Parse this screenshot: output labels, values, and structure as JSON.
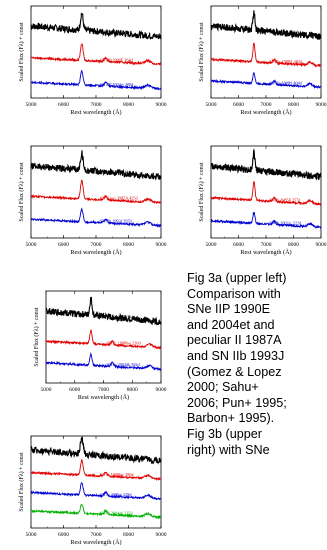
{
  "charts": [
    {
      "ylabel": "Scaled Flux (Fλ) + const",
      "xlabel": "Rest wavelength (Å)"
    }
  ],
  "chart_data": [
    {
      "type": "line",
      "xlabel": "Rest wavelength (Å)",
      "ylabel": "Scaled Flux (Fλ) + const",
      "xlim": [
        5000,
        9000
      ],
      "xticks": [
        5000,
        6000,
        7000,
        8000,
        9000
      ],
      "series": [
        {
          "name": "SN 2006gy 394d",
          "color": "#000000",
          "offset": 2.0,
          "peak": 0.55
        },
        {
          "name": "SN IIP 1990E 364d",
          "color": "#e00000",
          "offset": 1.1,
          "peak": 0.55
        },
        {
          "name": "SN IIP 2004et 400d",
          "color": "#0000d0",
          "offset": 0.3,
          "peak": 0.45
        }
      ]
    },
    {
      "type": "line",
      "xlabel": "Rest wavelength (Å)",
      "ylabel": "Scaled Flux (Fλ) + const",
      "xlim": [
        5000,
        9000
      ],
      "xticks": [
        5000,
        6000,
        7000,
        8000,
        9000
      ],
      "series": [
        {
          "name": "SN 2006gy 394d",
          "color": "#000000",
          "offset": 2.0,
          "peak": 0.55
        },
        {
          "name": "SN IIn 1988Z 482d",
          "color": "#e00000",
          "offset": 1.05,
          "peak": 0.6
        },
        {
          "name": "SN IIn 1998S 404d",
          "color": "#0000d0",
          "offset": 0.35,
          "peak": 0.35
        }
      ]
    },
    {
      "type": "line",
      "xlabel": "Rest wavelength (Å)",
      "ylabel": "Scaled Flux (Fλ) + const",
      "xlim": [
        5000,
        9000
      ],
      "xticks": [
        5000,
        6000,
        7000,
        8000,
        9000
      ],
      "series": [
        {
          "name": "SN 2006gy 394d",
          "color": "#000000",
          "offset": 2.0,
          "peak": 0.55
        },
        {
          "name": "SN II pec 1987A 425d",
          "color": "#e00000",
          "offset": 1.15,
          "peak": 0.6
        },
        {
          "name": "SN IIb 1993J 297d",
          "color": "#0000d0",
          "offset": 0.4,
          "peak": 0.4
        }
      ]
    },
    {
      "type": "line",
      "xlabel": "Rest wavelength (Å)",
      "ylabel": "Scaled Flux (Fλ) + const",
      "xlim": [
        5000,
        9000
      ],
      "xticks": [
        5000,
        6000,
        7000,
        8000,
        9000
      ],
      "series": [
        {
          "name": "SN 2006gy 394d",
          "color": "#000000",
          "offset": 2.0,
          "peak": 0.55
        },
        {
          "name": "SN Ib 1985F 257d",
          "color": "#e00000",
          "offset": 1.1,
          "peak": 0.6
        },
        {
          "name": "SN Ib 2002ic 222d",
          "color": "#0000d0",
          "offset": 0.35,
          "peak": 0.35
        }
      ]
    },
    {
      "type": "line",
      "xlabel": "Rest wavelength (Å)",
      "ylabel": "Scaled Flux (Fλ) + const",
      "xlim": [
        5000,
        9000
      ],
      "xticks": [
        5000,
        6000,
        7000,
        8000,
        9000
      ],
      "series": [
        {
          "name": "SN 2006gy 394d",
          "color": "#000000",
          "offset": 2.0,
          "peak": 0.55
        },
        {
          "name": "SN Ic 1998bw 220d",
          "color": "#e00000",
          "offset": 1.15,
          "peak": 0.45
        },
        {
          "name": "SN Ic 2004dk 392d",
          "color": "#0000d0",
          "offset": 0.45,
          "peak": 0.35
        }
      ]
    },
    {
      "type": "line",
      "xlabel": "Rest wavelength (Å)",
      "ylabel": "Scaled Flux (Fλ) + const",
      "xlim": [
        5000,
        9000
      ],
      "xticks": [
        5000,
        6000,
        7000,
        8000,
        9000
      ],
      "series": [
        {
          "name": "SN 2006gy 394d",
          "color": "#000000",
          "offset": 2.2,
          "peak": 0.55
        },
        {
          "name": "SN Ic 1998bw 380d",
          "color": "#e00000",
          "offset": 1.6,
          "peak": 0.5
        },
        {
          "name": "SN Ic 2006aj 228d",
          "color": "#0000d0",
          "offset": 0.95,
          "peak": 0.4
        },
        {
          "name": "SN Ic 2004gk 225d",
          "color": "#00b000",
          "offset": 0.35,
          "peak": 0.3
        }
      ]
    }
  ],
  "caption": "Fig 3a (upper left)\nComparison with\nSNe IIP 1990E\nand 2004et and\npeculiar II 1987A\nand SN IIb 1993J\n(Gomez & Lopez\n2000; Sahu+\n2006; Pun+ 1995;\nBarbon+ 1995).\nFig 3b (upper\nright) with SNe"
}
